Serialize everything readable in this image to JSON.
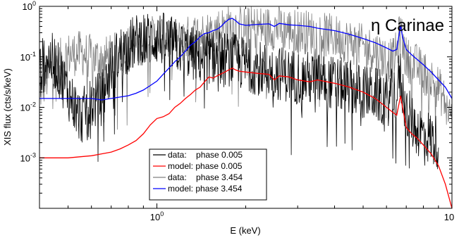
{
  "chart_data": {
    "type": "line",
    "title": "",
    "annotation": "η Carinae",
    "xlabel": "E (keV)",
    "ylabel": "XIS flux (cts/s/keV)",
    "xscale": "log",
    "yscale": "log",
    "xlim": [
      0.4,
      10
    ],
    "ylim": [
      0.0001,
      1
    ],
    "x_tick_labels": [
      {
        "value": 1,
        "base": "10",
        "exp": "0"
      },
      {
        "value": 10,
        "base": "10",
        "exp": ""
      }
    ],
    "y_tick_labels": [
      {
        "value": 0.001,
        "base": "10",
        "exp": "-3"
      },
      {
        "value": 0.01,
        "base": "10",
        "exp": "-2"
      },
      {
        "value": 0.1,
        "base": "10",
        "exp": "-1"
      },
      {
        "value": 1,
        "base": "10",
        "exp": "0"
      }
    ],
    "grid": false,
    "legend_position": "bottom-center",
    "series": [
      {
        "name": "data:    phase 3.454",
        "color": "#808080",
        "kind": "noisy-data",
        "noise": 0.45,
        "x": [
          0.4,
          0.45,
          0.5,
          0.55,
          0.6,
          0.65,
          0.7,
          0.8,
          0.9,
          1.0,
          1.1,
          1.2,
          1.3,
          1.4,
          1.5,
          1.6,
          1.7,
          1.8,
          1.9,
          2.0,
          2.2,
          2.4,
          2.6,
          2.8,
          3.0,
          3.5,
          4.0,
          4.5,
          5.0,
          5.5,
          6.0,
          6.3,
          6.5,
          6.6,
          6.7,
          6.8,
          7.0,
          7.5,
          8.0,
          9.0,
          10.0
        ],
        "y": [
          0.02,
          0.07,
          0.11,
          0.12,
          0.1,
          0.09,
          0.1,
          0.15,
          0.2,
          0.26,
          0.22,
          0.2,
          0.25,
          0.28,
          0.3,
          0.34,
          0.38,
          0.42,
          0.38,
          0.36,
          0.38,
          0.37,
          0.38,
          0.34,
          0.33,
          0.29,
          0.25,
          0.2,
          0.16,
          0.13,
          0.09,
          0.085,
          0.12,
          0.22,
          0.33,
          0.2,
          0.09,
          0.07,
          0.05,
          0.025,
          0.006
        ]
      },
      {
        "name": "data:    phase 0.005",
        "color": "#000000",
        "kind": "noisy-data",
        "noise": 0.55,
        "x": [
          0.4,
          0.42,
          0.45,
          0.5,
          0.55,
          0.6,
          0.65,
          0.7,
          0.75,
          0.8,
          0.85,
          0.9,
          0.95,
          1.0,
          1.1,
          1.2,
          1.3,
          1.4,
          1.5,
          1.6,
          1.7,
          1.8,
          2.0,
          2.5,
          3.0,
          3.5,
          4.0,
          4.5,
          5.0,
          5.5,
          6.0,
          6.5,
          6.6,
          6.7,
          6.8,
          7.0,
          7.5,
          8.0,
          9.0
        ],
        "y": [
          0.05,
          0.1,
          0.08,
          0.02,
          0.006,
          0.012,
          0.015,
          0.06,
          0.12,
          0.16,
          0.2,
          0.25,
          0.22,
          0.24,
          0.2,
          0.15,
          0.12,
          0.1,
          0.1,
          0.1,
          0.09,
          0.09,
          0.07,
          0.05,
          0.04,
          0.035,
          0.03,
          0.025,
          0.02,
          0.018,
          0.014,
          0.02,
          0.035,
          0.04,
          0.02,
          0.008,
          0.004,
          0.003,
          0.002
        ]
      },
      {
        "name": "model: phase 0.005",
        "color": "#ff0000",
        "kind": "model",
        "x": [
          0.4,
          0.5,
          0.6,
          0.65,
          0.7,
          0.75,
          0.8,
          0.85,
          0.9,
          0.95,
          1.0,
          1.05,
          1.1,
          1.15,
          1.2,
          1.25,
          1.3,
          1.35,
          1.4,
          1.45,
          1.5,
          1.55,
          1.6,
          1.7,
          1.75,
          1.8,
          1.85,
          1.9,
          2.0,
          2.2,
          2.4,
          2.5,
          2.6,
          2.8,
          3.0,
          3.3,
          3.5,
          4.0,
          4.5,
          5.0,
          5.5,
          6.0,
          6.3,
          6.5,
          6.6,
          6.7,
          6.8,
          7.0,
          7.3,
          7.6,
          8.0,
          8.5,
          9.0,
          9.5,
          10.0
        ],
        "y": [
          0.001,
          0.001,
          0.0011,
          0.0012,
          0.0013,
          0.0015,
          0.0018,
          0.0022,
          0.003,
          0.0045,
          0.006,
          0.0065,
          0.0075,
          0.01,
          0.012,
          0.015,
          0.018,
          0.022,
          0.025,
          0.032,
          0.04,
          0.038,
          0.042,
          0.05,
          0.055,
          0.06,
          0.055,
          0.052,
          0.05,
          0.047,
          0.045,
          0.035,
          0.042,
          0.04,
          0.035,
          0.032,
          0.035,
          0.03,
          0.025,
          0.02,
          0.015,
          0.01,
          0.008,
          0.007,
          0.011,
          0.017,
          0.01,
          0.004,
          0.003,
          0.0025,
          0.0018,
          0.0012,
          0.0007,
          0.0003,
          0.0001
        ]
      },
      {
        "name": "model: phase 3.454",
        "color": "#0000ff",
        "kind": "model",
        "x": [
          0.4,
          0.5,
          0.6,
          0.65,
          0.7,
          0.75,
          0.8,
          0.85,
          0.9,
          0.95,
          1.0,
          1.05,
          1.1,
          1.15,
          1.2,
          1.25,
          1.3,
          1.35,
          1.4,
          1.45,
          1.5,
          1.55,
          1.6,
          1.65,
          1.7,
          1.75,
          1.8,
          1.85,
          1.9,
          2.0,
          2.2,
          2.4,
          2.5,
          2.6,
          2.8,
          3.0,
          3.3,
          3.5,
          4.0,
          4.5,
          5.0,
          5.5,
          6.0,
          6.3,
          6.5,
          6.6,
          6.7,
          6.8,
          7.0,
          7.3,
          7.6,
          8.0,
          8.5,
          9.0,
          9.5,
          10.0
        ],
        "y": [
          0.015,
          0.015,
          0.015,
          0.014,
          0.015,
          0.016,
          0.017,
          0.019,
          0.022,
          0.027,
          0.033,
          0.045,
          0.06,
          0.08,
          0.1,
          0.13,
          0.17,
          0.2,
          0.25,
          0.29,
          0.3,
          0.33,
          0.35,
          0.4,
          0.48,
          0.55,
          0.58,
          0.52,
          0.45,
          0.42,
          0.44,
          0.45,
          0.4,
          0.46,
          0.43,
          0.42,
          0.4,
          0.37,
          0.33,
          0.28,
          0.23,
          0.19,
          0.15,
          0.13,
          0.14,
          0.25,
          0.42,
          0.25,
          0.14,
          0.11,
          0.09,
          0.07,
          0.05,
          0.035,
          0.025,
          0.015
        ]
      }
    ],
    "legend": [
      {
        "label": "data:    phase 0.005",
        "color": "#000000"
      },
      {
        "label": "model: phase 0.005",
        "color": "#ff0000"
      },
      {
        "label": "data:    phase 3.454",
        "color": "#808080"
      },
      {
        "label": "model: phase 3.454",
        "color": "#0000ff"
      }
    ]
  }
}
